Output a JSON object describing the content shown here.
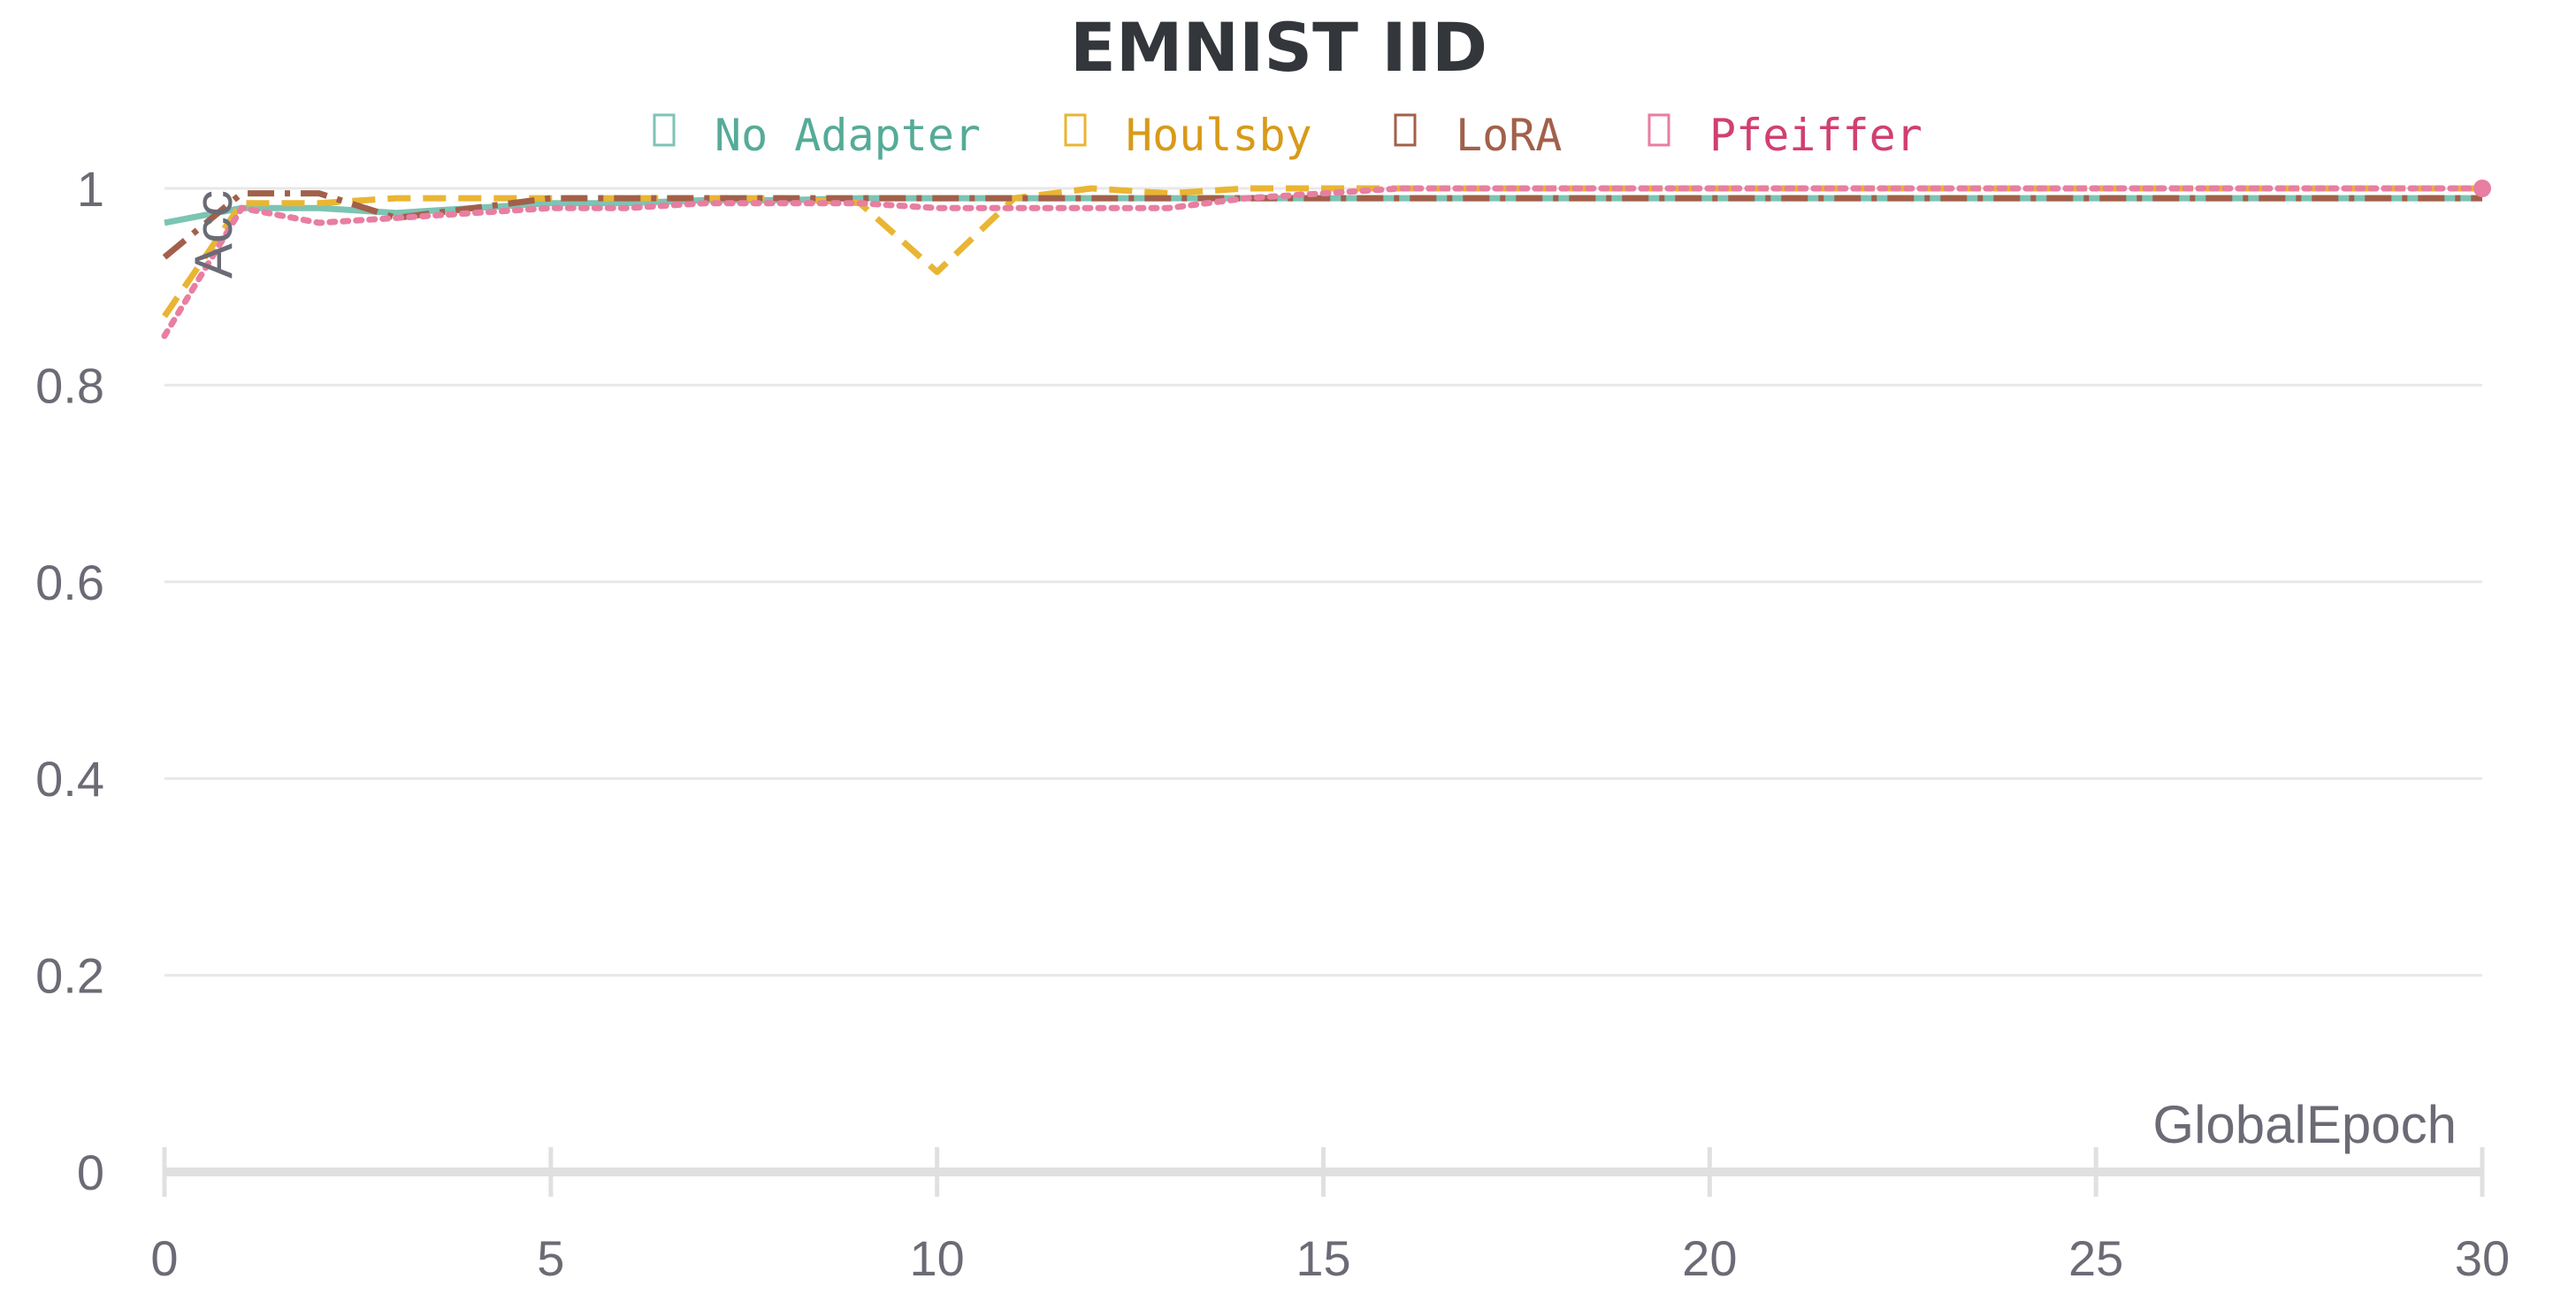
{
  "chart_data": {
    "type": "line",
    "title": "EMNIST IID",
    "xlabel": "GlobalEpoch",
    "ylabel": "Acc",
    "xlim": [
      0,
      30
    ],
    "ylim": [
      0,
      1
    ],
    "xticks": [
      "0",
      "5",
      "10",
      "15",
      "20",
      "25",
      "30"
    ],
    "yticks": [
      "0",
      "0.2",
      "0.4",
      "0.6",
      "0.8",
      "1"
    ],
    "grid": true,
    "legend_position": "top-center",
    "series": [
      {
        "name": "No Adapter",
        "color": "#7cc4b4",
        "text_color": "#55ab98",
        "dash": "solid",
        "x": [
          0,
          1,
          2,
          3,
          4,
          5,
          6,
          7,
          8,
          9,
          10,
          11,
          12,
          13,
          14,
          15,
          16,
          17,
          18,
          19,
          20,
          21,
          22,
          23,
          24,
          25,
          26,
          27,
          28,
          29,
          30
        ],
        "values": [
          0.965,
          0.98,
          0.98,
          0.975,
          0.98,
          0.985,
          0.985,
          0.988,
          0.988,
          0.99,
          0.99,
          0.99,
          0.99,
          0.99,
          0.99,
          0.99,
          0.99,
          0.99,
          0.99,
          0.99,
          0.99,
          0.99,
          0.99,
          0.99,
          0.99,
          0.99,
          0.99,
          0.99,
          0.99,
          0.99,
          0.99
        ]
      },
      {
        "name": "Houlsby",
        "color": "#e9b533",
        "text_color": "#d89a18",
        "dash": "dashed",
        "x": [
          0,
          1,
          2,
          3,
          4,
          5,
          6,
          7,
          8,
          9,
          10,
          11,
          12,
          13,
          14,
          15,
          16,
          17,
          18,
          19,
          20,
          21,
          22,
          23,
          24,
          25,
          26,
          27,
          28,
          29,
          30
        ],
        "values": [
          0.87,
          0.985,
          0.985,
          0.99,
          0.99,
          0.99,
          0.99,
          0.99,
          0.99,
          0.985,
          0.915,
          0.99,
          1.0,
          0.995,
          1.0,
          1.0,
          1.0,
          1.0,
          1.0,
          1.0,
          1.0,
          1.0,
          1.0,
          1.0,
          1.0,
          1.0,
          1.0,
          1.0,
          1.0,
          1.0,
          1.0
        ]
      },
      {
        "name": "LoRA",
        "color": "#a2604a",
        "text_color": "#a2604a",
        "dash": "dashdot",
        "x": [
          0,
          1,
          2,
          3,
          4,
          5,
          6,
          7,
          8,
          9,
          10,
          11,
          12,
          13,
          14,
          15,
          16,
          17,
          18,
          19,
          20,
          21,
          22,
          23,
          24,
          25,
          26,
          27,
          28,
          29,
          30
        ],
        "values": [
          0.93,
          0.995,
          0.995,
          0.97,
          0.98,
          0.99,
          0.99,
          0.99,
          0.99,
          0.99,
          0.99,
          0.99,
          0.99,
          0.99,
          0.99,
          0.99,
          0.99,
          0.99,
          0.99,
          0.99,
          0.99,
          0.99,
          0.99,
          0.99,
          0.99,
          0.99,
          0.99,
          0.99,
          0.99,
          0.99,
          0.99
        ]
      },
      {
        "name": "Pfeiffer",
        "color": "#e87ea1",
        "text_color": "#d0406f",
        "dash": "dotted",
        "x": [
          0,
          1,
          2,
          3,
          4,
          5,
          6,
          7,
          8,
          9,
          10,
          11,
          12,
          13,
          14,
          15,
          16,
          17,
          18,
          19,
          20,
          21,
          22,
          23,
          24,
          25,
          26,
          27,
          28,
          29,
          30
        ],
        "values": [
          0.85,
          0.98,
          0.965,
          0.97,
          0.975,
          0.98,
          0.98,
          0.985,
          0.985,
          0.985,
          0.98,
          0.98,
          0.98,
          0.98,
          0.99,
          0.995,
          1.0,
          1.0,
          1.0,
          1.0,
          1.0,
          1.0,
          1.0,
          1.0,
          1.0,
          1.0,
          1.0,
          1.0,
          1.0,
          1.0,
          1.0
        ]
      }
    ]
  }
}
